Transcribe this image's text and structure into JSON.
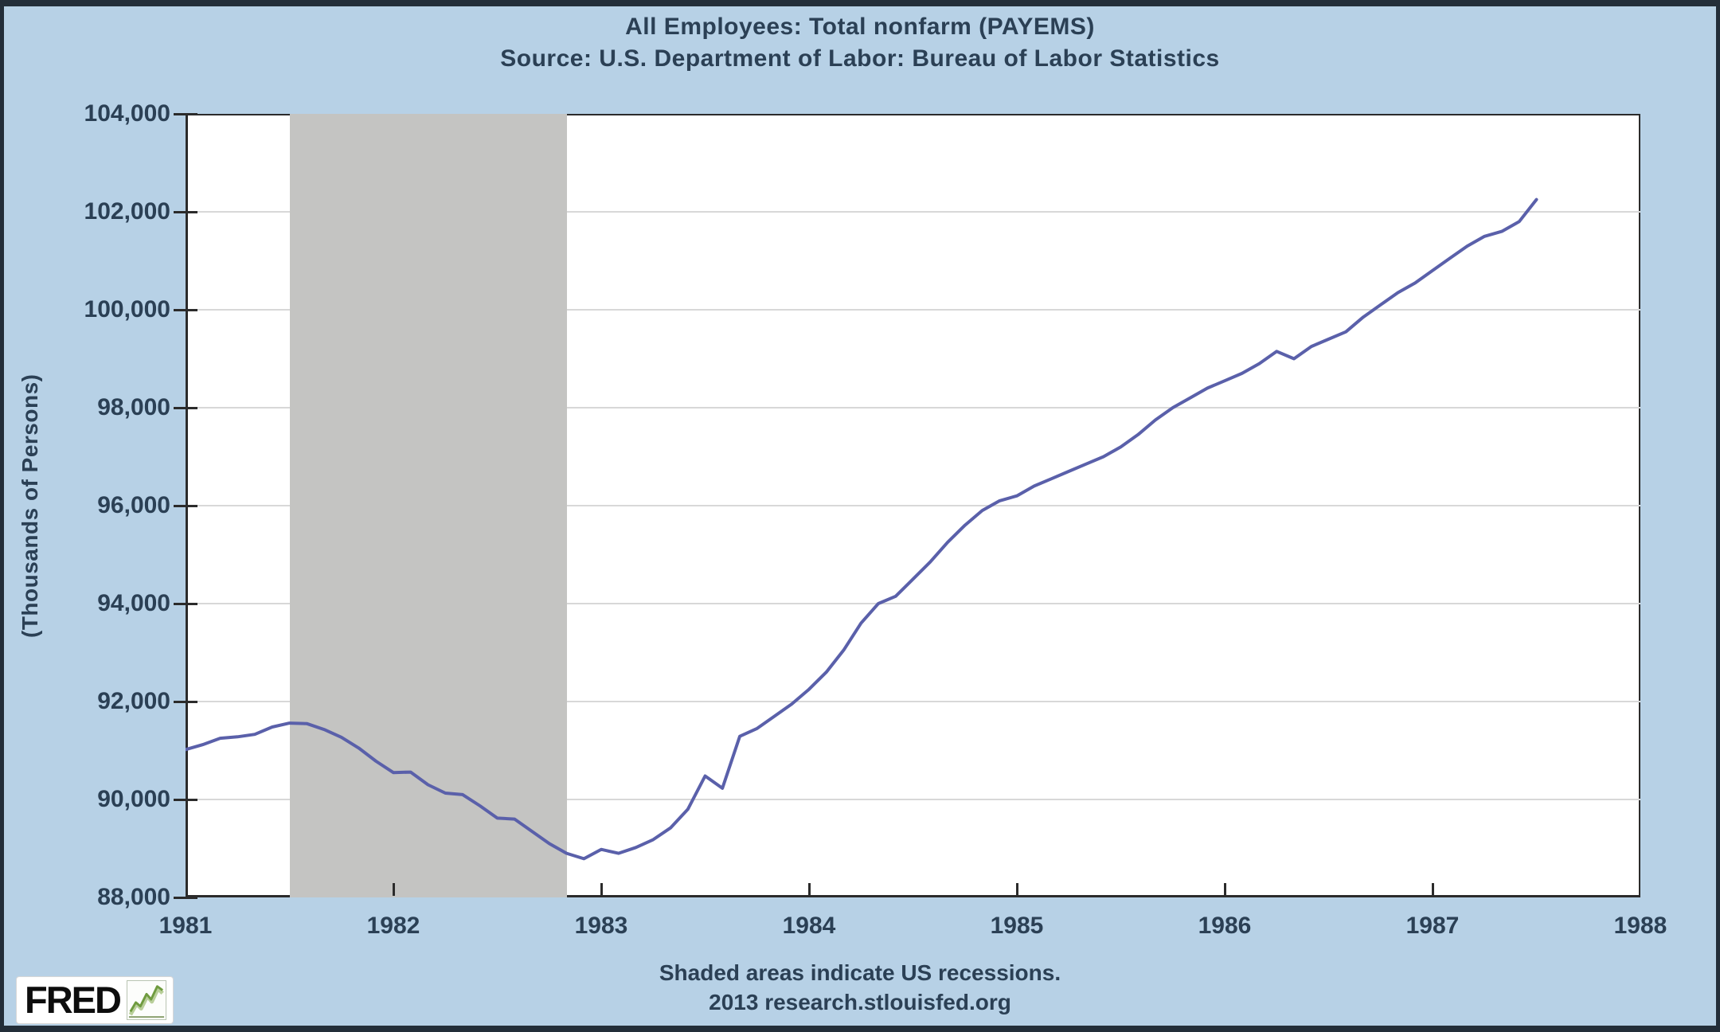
{
  "header": {
    "title": "All Employees: Total nonfarm (PAYEMS)",
    "source": "Source: U.S. Department of Labor: Bureau of Labor Statistics"
  },
  "y_axis": {
    "title": "(Thousands of Persons)"
  },
  "footer": {
    "note": "Shaded areas indicate US recessions.",
    "credit": "2013 research.stlouisfed.org"
  },
  "logo": {
    "text": "FRED",
    "icon": "line-chart-icon"
  },
  "colors": {
    "background": "#b7d1e6",
    "frame_border": "#232e39",
    "text": "#2b4055",
    "plot_background": "#ffffff",
    "plot_border": "#2b2b2b",
    "gridline": "#d8d8d8",
    "recession_band": "#c4c4c2",
    "series_line": "#5a60aa",
    "logo_green": "#6f9b3f"
  },
  "chart_data": {
    "type": "line",
    "title": "All Employees: Total nonfarm (PAYEMS)",
    "ylabel": "(Thousands of Persons)",
    "xlabel": "",
    "grid": true,
    "legend_position": "none",
    "xlim": [
      1981,
      1988
    ],
    "ylim": [
      88000,
      104000
    ],
    "x_ticks": [
      1981,
      1982,
      1983,
      1984,
      1985,
      1986,
      1987,
      1988
    ],
    "y_ticks": [
      88000,
      90000,
      92000,
      94000,
      96000,
      98000,
      100000,
      102000,
      104000
    ],
    "series": [
      {
        "name": "All Employees: Total nonfarm",
        "frequency": "monthly",
        "start_date": "1981-01",
        "end_date": "1987-07",
        "values": [
          91020,
          91120,
          91250,
          91280,
          91330,
          91480,
          91560,
          91550,
          91430,
          91270,
          91050,
          90780,
          90550,
          90560,
          90300,
          90130,
          90100,
          89870,
          89620,
          89600,
          89350,
          89100,
          88900,
          88790,
          88980,
          88900,
          89020,
          89180,
          89420,
          89800,
          90480,
          90230,
          91290,
          91450,
          91700,
          91950,
          92250,
          92600,
          93050,
          93600,
          94000,
          94150,
          94500,
          94850,
          95250,
          95600,
          95900,
          96100,
          96200,
          96400,
          96550,
          96700,
          96850,
          97000,
          97200,
          97450,
          97750,
          98000,
          98200,
          98400,
          98550,
          98700,
          98900,
          99150,
          99000,
          99250,
          99400,
          99550,
          99850,
          100100,
          100350,
          100550,
          100800,
          101050,
          101300,
          101500,
          101600,
          101800,
          102250
        ]
      }
    ],
    "recessions": [
      {
        "start": "1981-07",
        "end": "1982-11"
      }
    ]
  }
}
